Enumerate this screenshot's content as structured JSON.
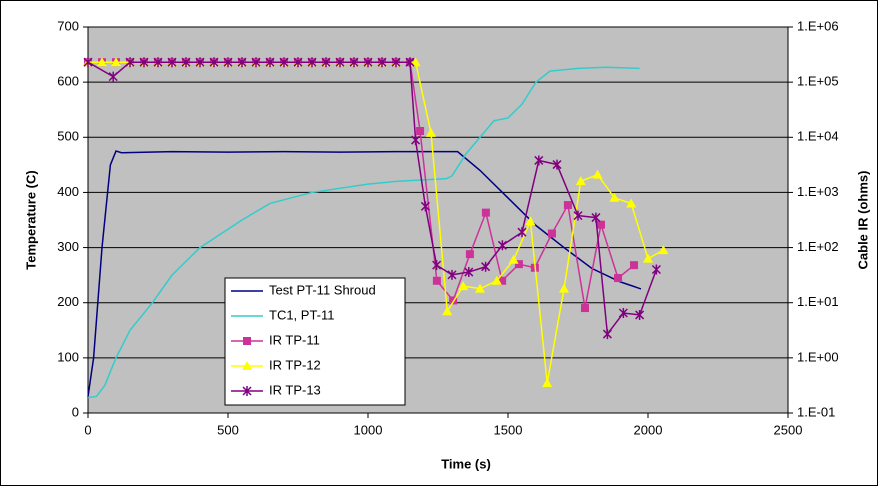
{
  "chart_data": {
    "type": "line",
    "xlabel": "Time (s)",
    "ylabel": "Temperature (C)",
    "y2label": "Cable IR (ohms)",
    "xlim": [
      0,
      2500
    ],
    "xticks": [
      0,
      500,
      1000,
      1500,
      2000,
      2500
    ],
    "ylim": [
      0,
      700
    ],
    "yticks": [
      0,
      100,
      200,
      300,
      400,
      500,
      600,
      700
    ],
    "y2lim": [
      0.1,
      1000000
    ],
    "y2scale": "log",
    "y2ticks": [
      {
        "value": 0.1,
        "label": "1.E-01"
      },
      {
        "value": 1,
        "label": "1.E+00"
      },
      {
        "value": 10,
        "label": "1.E+01"
      },
      {
        "value": 100,
        "label": "1.E+02"
      },
      {
        "value": 1000,
        "label": "1.E+03"
      },
      {
        "value": 10000,
        "label": "1.E+04"
      },
      {
        "value": 100000,
        "label": "1.E+05"
      },
      {
        "value": 1000000,
        "label": "1.E+06"
      }
    ],
    "grid": true,
    "background": "#c0c0c0",
    "legend": "lower-left",
    "series": [
      {
        "name": "Test PT-11 Shroud",
        "color": "#000080",
        "marker": "none",
        "x": [
          0,
          20,
          50,
          80,
          100,
          120,
          300,
          500,
          700,
          900,
          1100,
          1320,
          1400,
          1500,
          1600,
          1700,
          1800,
          1900,
          1975
        ],
        "values": [
          30,
          100,
          300,
          450,
          475,
          472,
          474,
          473,
          474,
          473,
          474,
          474,
          440,
          390,
          340,
          300,
          262,
          238,
          225
        ]
      },
      {
        "name": "TC1, PT-11",
        "color": "#33cccc",
        "marker": "none",
        "x": [
          0,
          30,
          60,
          100,
          150,
          230,
          300,
          400,
          550,
          650,
          800,
          1000,
          1100,
          1280,
          1300,
          1350,
          1400,
          1450,
          1500,
          1550,
          1600,
          1650,
          1750,
          1850,
          1970
        ],
        "values": [
          28,
          30,
          50,
          100,
          150,
          200,
          250,
          300,
          350,
          380,
          400,
          415,
          420,
          425,
          430,
          470,
          500,
          530,
          535,
          560,
          600,
          620,
          625,
          627,
          625
        ]
      },
      {
        "name": "IR TP-11",
        "color": "#cc3399",
        "marker": "square",
        "axis": "y2",
        "x": [
          0,
          50,
          100,
          150,
          200,
          250,
          300,
          350,
          400,
          450,
          500,
          550,
          600,
          650,
          700,
          750,
          800,
          850,
          900,
          950,
          1000,
          1050,
          1100,
          1150,
          1186,
          1246,
          1304,
          1364,
          1421,
          1479,
          1539,
          1596,
          1657,
          1714,
          1775,
          1832,
          1893,
          1950
        ],
        "values": [
          230000,
          230000,
          230000,
          230000,
          230000,
          230000,
          230000,
          230000,
          230000,
          230000,
          230000,
          230000,
          230000,
          230000,
          230000,
          230000,
          230000,
          230000,
          230000,
          230000,
          230000,
          230000,
          230000,
          230000,
          13000,
          25,
          11,
          76,
          430,
          25,
          50,
          43,
          180,
          590,
          8,
          260,
          28,
          48
        ]
      },
      {
        "name": "IR TP-12",
        "color": "#ffff00",
        "marker": "triangle",
        "axis": "y2",
        "x": [
          0,
          50,
          100,
          150,
          200,
          250,
          300,
          350,
          400,
          450,
          500,
          550,
          600,
          650,
          700,
          750,
          800,
          850,
          900,
          950,
          1000,
          1050,
          1100,
          1170,
          1225,
          1283,
          1340,
          1400,
          1460,
          1520,
          1580,
          1640,
          1700,
          1760,
          1820,
          1880,
          1940,
          2000,
          2055
        ],
        "values": [
          230000,
          230000,
          230000,
          230000,
          230000,
          230000,
          230000,
          230000,
          230000,
          230000,
          230000,
          230000,
          230000,
          230000,
          230000,
          230000,
          230000,
          230000,
          230000,
          230000,
          230000,
          230000,
          230000,
          230000,
          12000,
          7,
          20,
          18,
          25,
          60,
          300,
          0.35,
          18,
          1600,
          2100,
          800,
          630,
          63,
          90
        ]
      },
      {
        "name": "IR TP-13",
        "color": "#800080",
        "marker": "star",
        "axis": "y2",
        "x": [
          0,
          90,
          150,
          200,
          250,
          300,
          350,
          400,
          450,
          500,
          550,
          600,
          650,
          700,
          750,
          800,
          850,
          900,
          950,
          1000,
          1050,
          1100,
          1150,
          1170,
          1205,
          1245,
          1300,
          1360,
          1420,
          1480,
          1550,
          1610,
          1675,
          1750,
          1814,
          1855,
          1912,
          1970,
          2030
        ],
        "values": [
          230000,
          126000,
          230000,
          230000,
          230000,
          230000,
          230000,
          230000,
          230000,
          230000,
          230000,
          230000,
          230000,
          230000,
          230000,
          230000,
          230000,
          230000,
          230000,
          230000,
          230000,
          230000,
          230000,
          8900,
          560,
          48,
          32,
          36,
          45,
          110,
          190,
          3800,
          3200,
          380,
          350,
          2.7,
          6.5,
          6,
          40
        ]
      }
    ]
  }
}
